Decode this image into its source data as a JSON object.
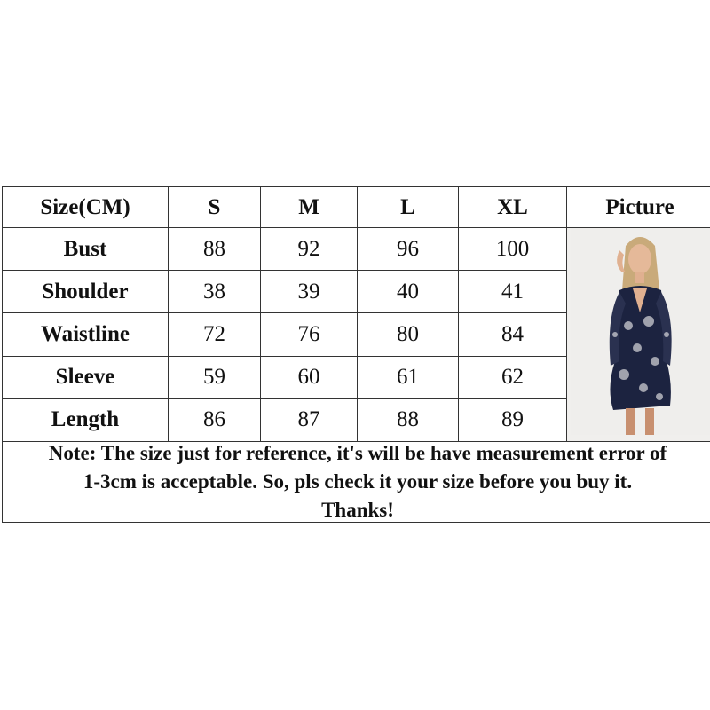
{
  "table": {
    "headers": [
      "Size(CM)",
      "S",
      "M",
      "L",
      "XL",
      "Picture"
    ],
    "rows": [
      {
        "label": "Bust",
        "values": [
          "88",
          "92",
          "96",
          "100"
        ]
      },
      {
        "label": "Shoulder",
        "values": [
          "38",
          "39",
          "40",
          "41"
        ]
      },
      {
        "label": "Waistline",
        "values": [
          "72",
          "76",
          "80",
          "84"
        ]
      },
      {
        "label": "Sleeve",
        "values": [
          "59",
          "60",
          "61",
          "62"
        ]
      },
      {
        "label": "Length",
        "values": [
          "86",
          "87",
          "88",
          "89"
        ]
      }
    ]
  },
  "note": {
    "line1": "Note: The size just for reference, it's will be have measurement error of",
    "line2": "1-3cm is acceptable. So, pls check it your size before you buy it.",
    "line3": "Thanks!"
  },
  "colors": {
    "border": "#333333",
    "dress": "#1c2340",
    "print": "#d8d8dc"
  }
}
